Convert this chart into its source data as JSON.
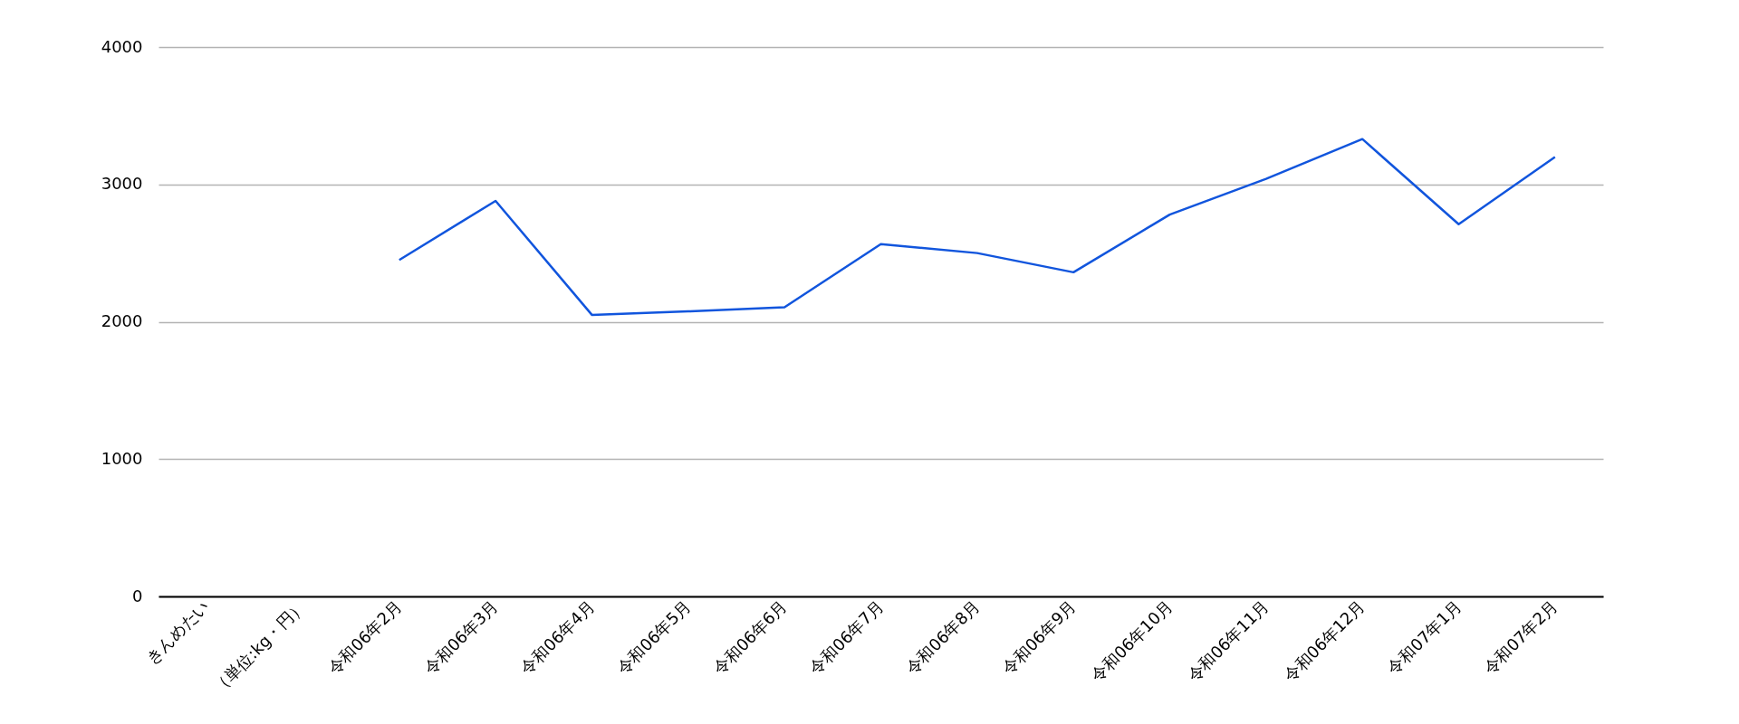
{
  "chart_data": {
    "type": "line",
    "categories": [
      "きんめたい",
      "（単位:kg・円）",
      "令和06年2月",
      "令和06年3月",
      "令和06年4月",
      "令和06年5月",
      "令和06年6月",
      "令和06年7月",
      "令和06年8月",
      "令和06年9月",
      "令和06年10月",
      "令和06年11月",
      "令和06年12月",
      "令和07年1月",
      "令和07年2月"
    ],
    "series": [
      {
        "color": "#1155dd",
        "values": [
          null,
          null,
          2450,
          2880,
          2050,
          2075,
          2105,
          2565,
          2500,
          2360,
          2780,
          3040,
          3330,
          2710,
          3200
        ]
      }
    ],
    "ylim": [
      0,
      4000
    ],
    "yticks": [
      0,
      1000,
      2000,
      3000,
      4000
    ],
    "grid": "y",
    "legend": false,
    "marker": "none",
    "line_style": "solid"
  }
}
